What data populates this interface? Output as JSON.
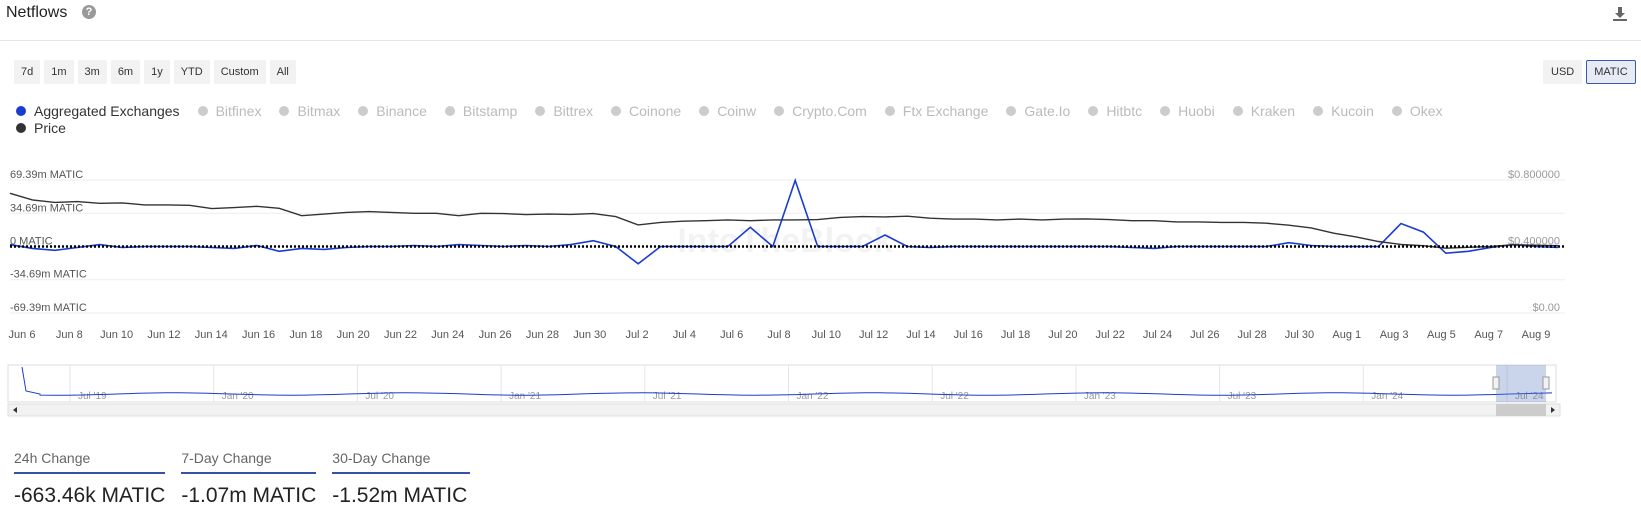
{
  "header": {
    "title": "Netflows"
  },
  "range_buttons": [
    "7d",
    "1m",
    "3m",
    "6m",
    "1y",
    "YTD",
    "Custom",
    "All"
  ],
  "unit_buttons": [
    {
      "label": "USD",
      "active": false
    },
    {
      "label": "MATIC",
      "active": true
    }
  ],
  "legend": [
    {
      "label": "Aggregated Exchanges",
      "color": "#1a3ccf",
      "active": true
    },
    {
      "label": "Bitfinex",
      "active": false
    },
    {
      "label": "Bitmax",
      "active": false
    },
    {
      "label": "Binance",
      "active": false
    },
    {
      "label": "Bitstamp",
      "active": false
    },
    {
      "label": "Bittrex",
      "active": false
    },
    {
      "label": "Coinone",
      "active": false
    },
    {
      "label": "Coinw",
      "active": false
    },
    {
      "label": "Crypto.Com",
      "active": false
    },
    {
      "label": "Ftx Exchange",
      "active": false
    },
    {
      "label": "Gate.Io",
      "active": false
    },
    {
      "label": "Hitbtc",
      "active": false
    },
    {
      "label": "Huobi",
      "active": false
    },
    {
      "label": "Kraken",
      "active": false
    },
    {
      "label": "Kucoin",
      "active": false
    },
    {
      "label": "Okex",
      "active": false
    },
    {
      "label": "Price",
      "color": "#333333",
      "active": true
    }
  ],
  "chart_data": {
    "type": "line",
    "y_left": {
      "ticks": [
        69.39,
        34.69,
        0,
        -34.69,
        -69.39
      ],
      "tick_labels": [
        "69.39m MATIC",
        "34.69m MATIC",
        "0 MATIC",
        "-34.69m MATIC",
        "-69.39m MATIC"
      ],
      "ylim": [
        -69.39,
        69.39
      ]
    },
    "y_right": {
      "ticks": [
        0.8,
        0.4,
        0
      ],
      "tick_labels": [
        "$0.800000",
        "$0.400000",
        "$0.00"
      ],
      "ylim": [
        0,
        0.8
      ]
    },
    "x_tick_labels": [
      "Jun 6",
      "Jun 8",
      "Jun 10",
      "Jun 12",
      "Jun 14",
      "Jun 16",
      "Jun 18",
      "Jun 20",
      "Jun 22",
      "Jun 24",
      "Jun 26",
      "Jun 28",
      "Jun 30",
      "Jul 2",
      "Jul 4",
      "Jul 6",
      "Jul 8",
      "Jul 10",
      "Jul 12",
      "Jul 14",
      "Jul 16",
      "Jul 18",
      "Jul 20",
      "Jul 22",
      "Jul 24",
      "Jul 26",
      "Jul 28",
      "Jul 30",
      "Aug 1",
      "Aug 3",
      "Aug 5",
      "Aug 7",
      "Aug 9"
    ],
    "series": [
      {
        "name": "Aggregated Exchanges",
        "color": "#1a3ccf",
        "axis": "left",
        "values": [
          2,
          -2,
          -4,
          -1,
          2,
          -1,
          0,
          0,
          0,
          -1,
          -2,
          1,
          -5,
          -2,
          -3,
          -1,
          0,
          0,
          1,
          0,
          2,
          1,
          0,
          1,
          0,
          2,
          6,
          0,
          -18,
          0,
          0,
          0,
          0,
          20,
          0,
          69,
          0,
          0,
          0,
          12,
          0,
          -1,
          0,
          0,
          0,
          0,
          0,
          0,
          0,
          0,
          -1,
          -2,
          0,
          0,
          0,
          0,
          0,
          4,
          1,
          0,
          0,
          0,
          24,
          15,
          -7,
          -5,
          -1,
          2,
          0,
          -1
        ]
      },
      {
        "name": "Price",
        "color": "#333333",
        "axis": "right",
        "values": [
          0.72,
          0.68,
          0.665,
          0.67,
          0.66,
          0.662,
          0.65,
          0.65,
          0.648,
          0.628,
          0.634,
          0.642,
          0.63,
          0.585,
          0.595,
          0.605,
          0.61,
          0.605,
          0.6,
          0.6,
          0.585,
          0.6,
          0.598,
          0.592,
          0.595,
          0.593,
          0.598,
          0.58,
          0.53,
          0.545,
          0.552,
          0.555,
          0.56,
          0.555,
          0.56,
          0.56,
          0.562,
          0.575,
          0.58,
          0.578,
          0.582,
          0.57,
          0.565,
          0.565,
          0.56,
          0.565,
          0.56,
          0.565,
          0.566,
          0.562,
          0.555,
          0.555,
          0.548,
          0.548,
          0.545,
          0.545,
          0.54,
          0.528,
          0.512,
          0.48,
          0.458,
          0.43,
          0.412,
          0.405,
          0.39,
          0.395,
          0.4,
          0.41,
          0.408,
          0.405
        ]
      }
    ],
    "navigator_tick_labels": [
      "Jul '19",
      "Jan '20",
      "Jul '20",
      "Jan '21",
      "Jul '21",
      "Jan '22",
      "Jul '22",
      "Jan '23",
      "Jul '23",
      "Jan '24",
      "Jul '24"
    ],
    "watermark": "IntoTheBlock"
  },
  "changes": [
    {
      "label": "24h Change",
      "value": "-663.46k MATIC"
    },
    {
      "label": "7-Day Change",
      "value": "-1.07m MATIC"
    },
    {
      "label": "30-Day Change",
      "value": "-1.52m MATIC"
    }
  ]
}
